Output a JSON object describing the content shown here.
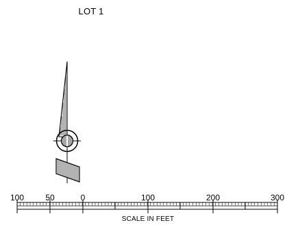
{
  "lot_label": "LOT 1",
  "scale": {
    "caption": "SCALE IN FEET",
    "ticks": [
      "100",
      "50",
      "0",
      "100",
      "200",
      "300"
    ]
  },
  "colors": {
    "ink": "#000000",
    "paper": "#ffffff"
  },
  "icons": [
    "north-arrow-icon",
    "survey-monument-icon"
  ]
}
